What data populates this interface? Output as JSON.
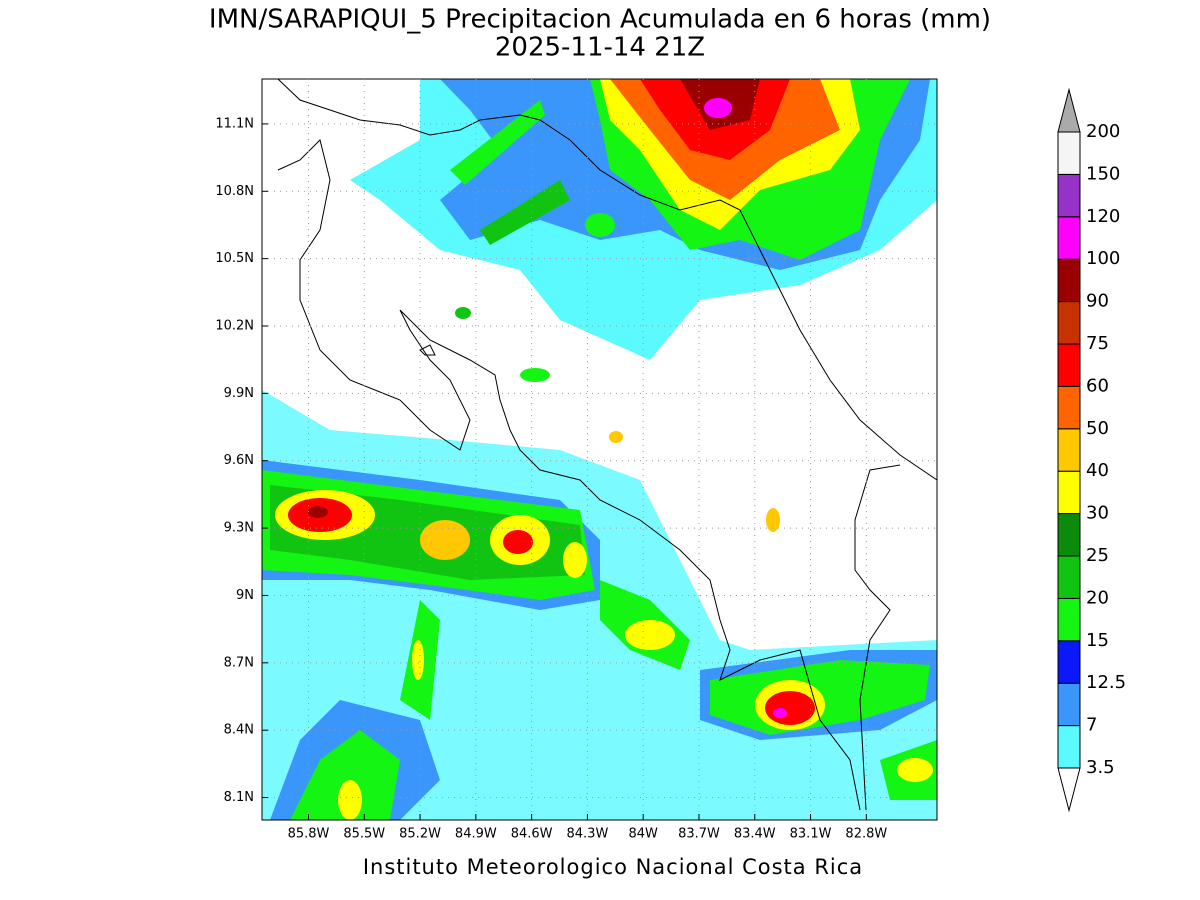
{
  "map": {
    "title": "IMN/SARAPIQUI_5 Precipitacion Acumulada en 6 horas (mm)",
    "subtitle": "2025-11-14 21Z",
    "xlim": [
      -86.05,
      -82.42
    ],
    "ylim": [
      8.0,
      11.3
    ],
    "xticks": [
      {
        "value": -85.8,
        "label": "85.8W"
      },
      {
        "value": -85.5,
        "label": "85.5W"
      },
      {
        "value": -85.2,
        "label": "85.2W"
      },
      {
        "value": -84.9,
        "label": "84.9W"
      },
      {
        "value": -84.6,
        "label": "84.6W"
      },
      {
        "value": -84.3,
        "label": "84.3W"
      },
      {
        "value": -84.0,
        "label": "84W"
      },
      {
        "value": -83.7,
        "label": "83.7W"
      },
      {
        "value": -83.4,
        "label": "83.4W"
      },
      {
        "value": -83.1,
        "label": "83.1W"
      },
      {
        "value": -82.8,
        "label": "82.8W"
      }
    ],
    "yticks": [
      {
        "value": 8.1,
        "label": "8.1N"
      },
      {
        "value": 8.4,
        "label": "8.4N"
      },
      {
        "value": 8.7,
        "label": "8.7N"
      },
      {
        "value": 9.0,
        "label": "9N"
      },
      {
        "value": 9.3,
        "label": "9.3N"
      },
      {
        "value": 9.6,
        "label": "9.6N"
      },
      {
        "value": 9.9,
        "label": "9.9N"
      },
      {
        "value": 10.2,
        "label": "10.2N"
      },
      {
        "value": 10.5,
        "label": "10.5N"
      },
      {
        "value": 10.8,
        "label": "10.8N"
      },
      {
        "value": 11.1,
        "label": "11.1N"
      }
    ],
    "grid": true,
    "colorbar": {
      "levels": [
        3.5,
        7,
        12.5,
        15,
        20,
        25,
        30,
        40,
        50,
        60,
        75,
        90,
        100,
        120,
        150,
        200
      ],
      "colors": [
        "#ffffff",
        "#5afaff",
        "#3a96fa",
        "#0a18fa",
        "#14f514",
        "#12c412",
        "#0b8a0b",
        "#ffff00",
        "#ffc800",
        "#ff6400",
        "#ff0000",
        "#c83200",
        "#9a0000",
        "#ff00ff",
        "#9632c8",
        "#f5f5f5",
        "#aaaaaa"
      ]
    },
    "footer": "Instituto Meteorologico Nacional Costa Rica"
  }
}
